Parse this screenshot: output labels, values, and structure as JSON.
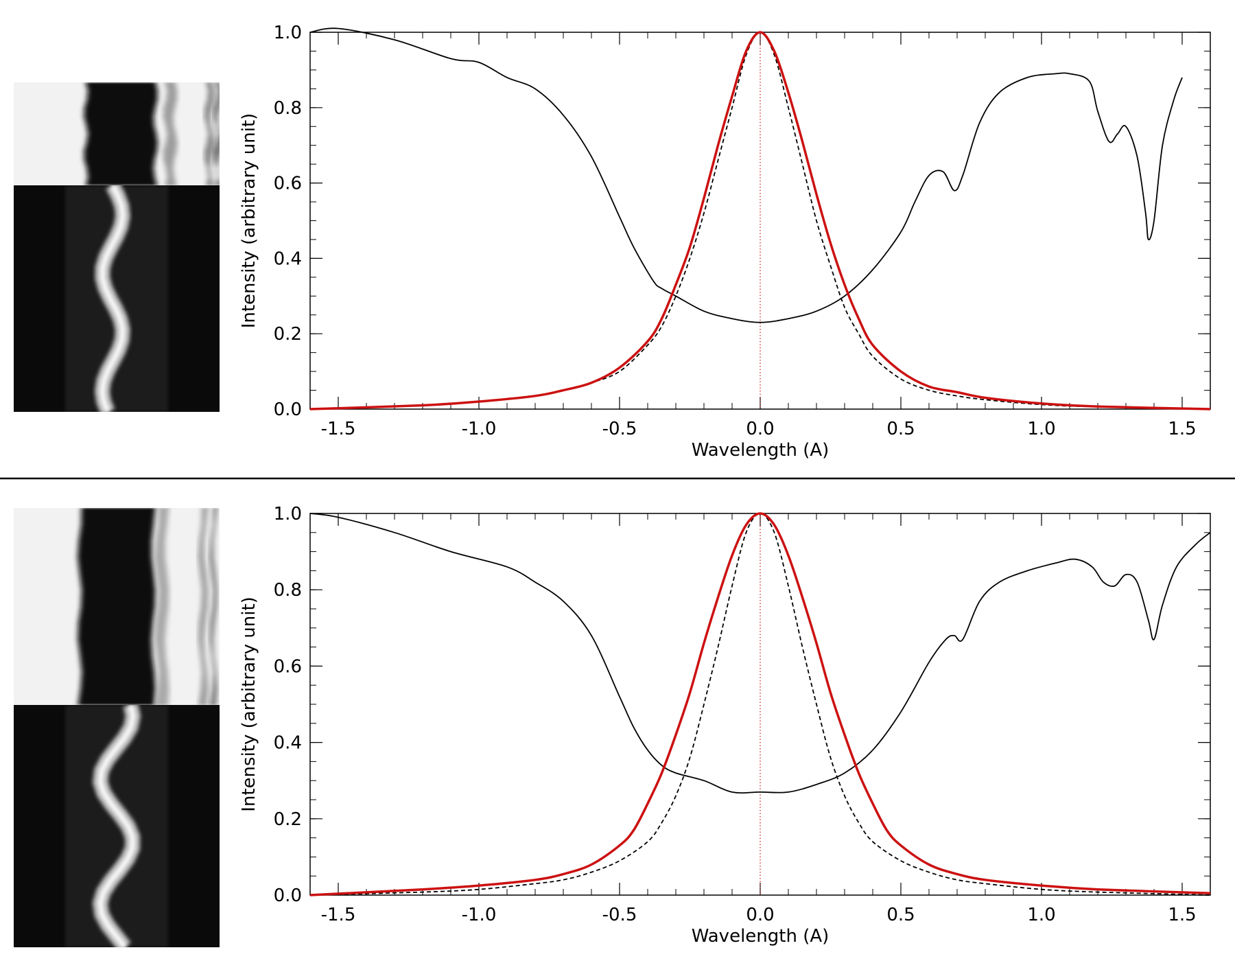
{
  "colors": {
    "line_profile": "#000000",
    "red_profile": "#cc1111",
    "dashed_profile": "#000000",
    "center_line": "#cc1111",
    "spectrum_bright": "#f2f2f2",
    "spectrum_dark": "#0a0a0a"
  },
  "panels": [
    {
      "id": "top",
      "images": [
        {
          "kind": "absorption-spectrum",
          "background": "light",
          "stripes": [
            {
              "x": 0.52,
              "w": 0.34,
              "depth": 0.97
            },
            {
              "x": 0.76,
              "w": 0.05,
              "depth": 0.35
            },
            {
              "x": 0.95,
              "w": 0.03,
              "depth": 0.45
            },
            {
              "x": 0.99,
              "w": 0.02,
              "depth": 0.6
            }
          ]
        },
        {
          "kind": "emission-spectrum",
          "background": "dark",
          "line_center": 0.48,
          "wander": 0.05
        }
      ]
    },
    {
      "id": "bottom",
      "images": [
        {
          "kind": "absorption-spectrum",
          "background": "light",
          "stripes": [
            {
              "x": 0.5,
              "w": 0.36,
              "depth": 0.96
            },
            {
              "x": 0.72,
              "w": 0.05,
              "depth": 0.3
            },
            {
              "x": 0.92,
              "w": 0.03,
              "depth": 0.35
            },
            {
              "x": 0.97,
              "w": 0.02,
              "depth": 0.5
            }
          ]
        },
        {
          "kind": "emission-spectrum",
          "background": "dark",
          "line_center": 0.5,
          "wander": 0.08
        }
      ]
    }
  ],
  "chart_data": [
    {
      "type": "line",
      "xlabel": "Wavelength (A)",
      "ylabel": "Intensity (arbitrary unit)",
      "xlim": [
        -1.6,
        1.6
      ],
      "ylim": [
        0.0,
        1.0
      ],
      "xticks": [
        "-1.5",
        "-1.0",
        "-0.5",
        "0.0",
        "0.5",
        "1.0",
        "1.5"
      ],
      "xtick_values": [
        -1.5,
        -1.0,
        -0.5,
        0.0,
        0.5,
        1.0,
        1.5
      ],
      "yticks": [
        "0.0",
        "0.2",
        "0.4",
        "0.6",
        "0.8",
        "1.0"
      ],
      "ytick_values": [
        0.0,
        0.2,
        0.4,
        0.6,
        0.8,
        1.0
      ],
      "reference_line_x": 0.0,
      "series": [
        {
          "style": "solid-black",
          "x": [
            -1.6,
            -1.5,
            -1.3,
            -1.1,
            -1.0,
            -0.9,
            -0.8,
            -0.7,
            -0.6,
            -0.5,
            -0.45,
            -0.38,
            -0.35,
            -0.3,
            -0.2,
            -0.1,
            0.0,
            0.1,
            0.2,
            0.3,
            0.4,
            0.5,
            0.55,
            0.6,
            0.65,
            0.69,
            0.72,
            0.78,
            0.85,
            0.95,
            1.05,
            1.1,
            1.17,
            1.2,
            1.24,
            1.27,
            1.3,
            1.34,
            1.37,
            1.38,
            1.4,
            1.43,
            1.47,
            1.5
          ],
          "y": [
            1.0,
            1.01,
            0.98,
            0.93,
            0.92,
            0.88,
            0.85,
            0.78,
            0.67,
            0.51,
            0.43,
            0.34,
            0.32,
            0.3,
            0.26,
            0.24,
            0.23,
            0.24,
            0.26,
            0.3,
            0.37,
            0.47,
            0.55,
            0.62,
            0.63,
            0.58,
            0.62,
            0.76,
            0.84,
            0.88,
            0.89,
            0.89,
            0.87,
            0.79,
            0.71,
            0.73,
            0.75,
            0.67,
            0.52,
            0.45,
            0.5,
            0.7,
            0.82,
            0.88
          ]
        },
        {
          "style": "solid-red",
          "x": [
            -1.6,
            -1.2,
            -1.0,
            -0.8,
            -0.7,
            -0.6,
            -0.5,
            -0.4,
            -0.35,
            -0.3,
            -0.25,
            -0.2,
            -0.15,
            -0.1,
            -0.05,
            0.0,
            0.05,
            0.1,
            0.15,
            0.2,
            0.25,
            0.3,
            0.35,
            0.4,
            0.5,
            0.6,
            0.7,
            0.8,
            1.0,
            1.2,
            1.6
          ],
          "y": [
            0.0,
            0.01,
            0.02,
            0.035,
            0.05,
            0.07,
            0.11,
            0.18,
            0.24,
            0.33,
            0.43,
            0.56,
            0.7,
            0.83,
            0.95,
            1.0,
            0.95,
            0.84,
            0.71,
            0.57,
            0.44,
            0.33,
            0.24,
            0.17,
            0.1,
            0.06,
            0.045,
            0.03,
            0.015,
            0.007,
            0.0
          ]
        },
        {
          "style": "dashed-black",
          "x": [
            -1.6,
            -1.2,
            -1.0,
            -0.8,
            -0.7,
            -0.6,
            -0.5,
            -0.4,
            -0.35,
            -0.3,
            -0.25,
            -0.2,
            -0.15,
            -0.1,
            -0.05,
            0.0,
            0.05,
            0.1,
            0.15,
            0.2,
            0.25,
            0.3,
            0.35,
            0.4,
            0.5,
            0.6,
            0.7,
            0.8,
            1.0,
            1.2,
            1.6
          ],
          "y": [
            0.0,
            0.01,
            0.02,
            0.035,
            0.05,
            0.07,
            0.1,
            0.17,
            0.22,
            0.3,
            0.4,
            0.52,
            0.66,
            0.8,
            0.94,
            1.0,
            0.94,
            0.8,
            0.65,
            0.5,
            0.38,
            0.27,
            0.2,
            0.14,
            0.08,
            0.05,
            0.035,
            0.025,
            0.012,
            0.006,
            0.0
          ]
        }
      ]
    },
    {
      "type": "line",
      "xlabel": "Wavelength (A)",
      "ylabel": "Intensity (arbitrary unit)",
      "xlim": [
        -1.6,
        1.6
      ],
      "ylim": [
        0.0,
        1.0
      ],
      "xticks": [
        "-1.5",
        "-1.0",
        "-0.5",
        "0.0",
        "0.5",
        "1.0",
        "1.5"
      ],
      "xtick_values": [
        -1.5,
        -1.0,
        -0.5,
        0.0,
        0.5,
        1.0,
        1.5
      ],
      "yticks": [
        "0.0",
        "0.2",
        "0.4",
        "0.6",
        "0.8",
        "1.0"
      ],
      "ytick_values": [
        0.0,
        0.2,
        0.4,
        0.6,
        0.8,
        1.0
      ],
      "reference_line_x": 0.0,
      "series": [
        {
          "style": "solid-black",
          "x": [
            -1.6,
            -1.5,
            -1.3,
            -1.1,
            -0.9,
            -0.8,
            -0.7,
            -0.6,
            -0.5,
            -0.45,
            -0.4,
            -0.35,
            -0.3,
            -0.2,
            -0.1,
            0.0,
            0.1,
            0.2,
            0.3,
            0.4,
            0.5,
            0.6,
            0.66,
            0.69,
            0.72,
            0.78,
            0.85,
            0.95,
            1.05,
            1.12,
            1.18,
            1.22,
            1.26,
            1.3,
            1.34,
            1.38,
            1.4,
            1.43,
            1.48,
            1.55,
            1.6
          ],
          "y": [
            1.0,
            0.99,
            0.95,
            0.9,
            0.86,
            0.82,
            0.77,
            0.68,
            0.52,
            0.44,
            0.38,
            0.34,
            0.32,
            0.3,
            0.27,
            0.27,
            0.27,
            0.29,
            0.32,
            0.38,
            0.48,
            0.61,
            0.67,
            0.68,
            0.67,
            0.77,
            0.82,
            0.85,
            0.87,
            0.88,
            0.86,
            0.82,
            0.81,
            0.84,
            0.82,
            0.72,
            0.67,
            0.76,
            0.86,
            0.92,
            0.95
          ]
        },
        {
          "style": "solid-red",
          "x": [
            -1.6,
            -1.2,
            -1.0,
            -0.8,
            -0.7,
            -0.6,
            -0.5,
            -0.45,
            -0.4,
            -0.35,
            -0.3,
            -0.25,
            -0.2,
            -0.15,
            -0.1,
            -0.05,
            0.0,
            0.05,
            0.1,
            0.15,
            0.2,
            0.25,
            0.3,
            0.35,
            0.4,
            0.45,
            0.5,
            0.6,
            0.7,
            0.8,
            1.0,
            1.2,
            1.6
          ],
          "y": [
            0.0,
            0.015,
            0.025,
            0.04,
            0.055,
            0.08,
            0.13,
            0.17,
            0.24,
            0.32,
            0.42,
            0.53,
            0.66,
            0.78,
            0.89,
            0.97,
            1.0,
            0.97,
            0.89,
            0.78,
            0.66,
            0.53,
            0.42,
            0.32,
            0.24,
            0.17,
            0.13,
            0.08,
            0.055,
            0.04,
            0.025,
            0.015,
            0.005
          ]
        },
        {
          "style": "dashed-black",
          "x": [
            -1.6,
            -1.2,
            -1.0,
            -0.8,
            -0.7,
            -0.6,
            -0.5,
            -0.4,
            -0.35,
            -0.3,
            -0.25,
            -0.2,
            -0.15,
            -0.1,
            -0.05,
            0.0,
            0.05,
            0.1,
            0.15,
            0.2,
            0.25,
            0.3,
            0.35,
            0.4,
            0.5,
            0.6,
            0.7,
            0.8,
            1.0,
            1.2,
            1.6
          ],
          "y": [
            0.0,
            0.008,
            0.015,
            0.03,
            0.04,
            0.06,
            0.09,
            0.14,
            0.19,
            0.26,
            0.36,
            0.5,
            0.65,
            0.81,
            0.95,
            1.0,
            0.95,
            0.81,
            0.65,
            0.5,
            0.36,
            0.26,
            0.19,
            0.14,
            0.09,
            0.06,
            0.04,
            0.03,
            0.015,
            0.008,
            0.0
          ]
        }
      ]
    }
  ]
}
